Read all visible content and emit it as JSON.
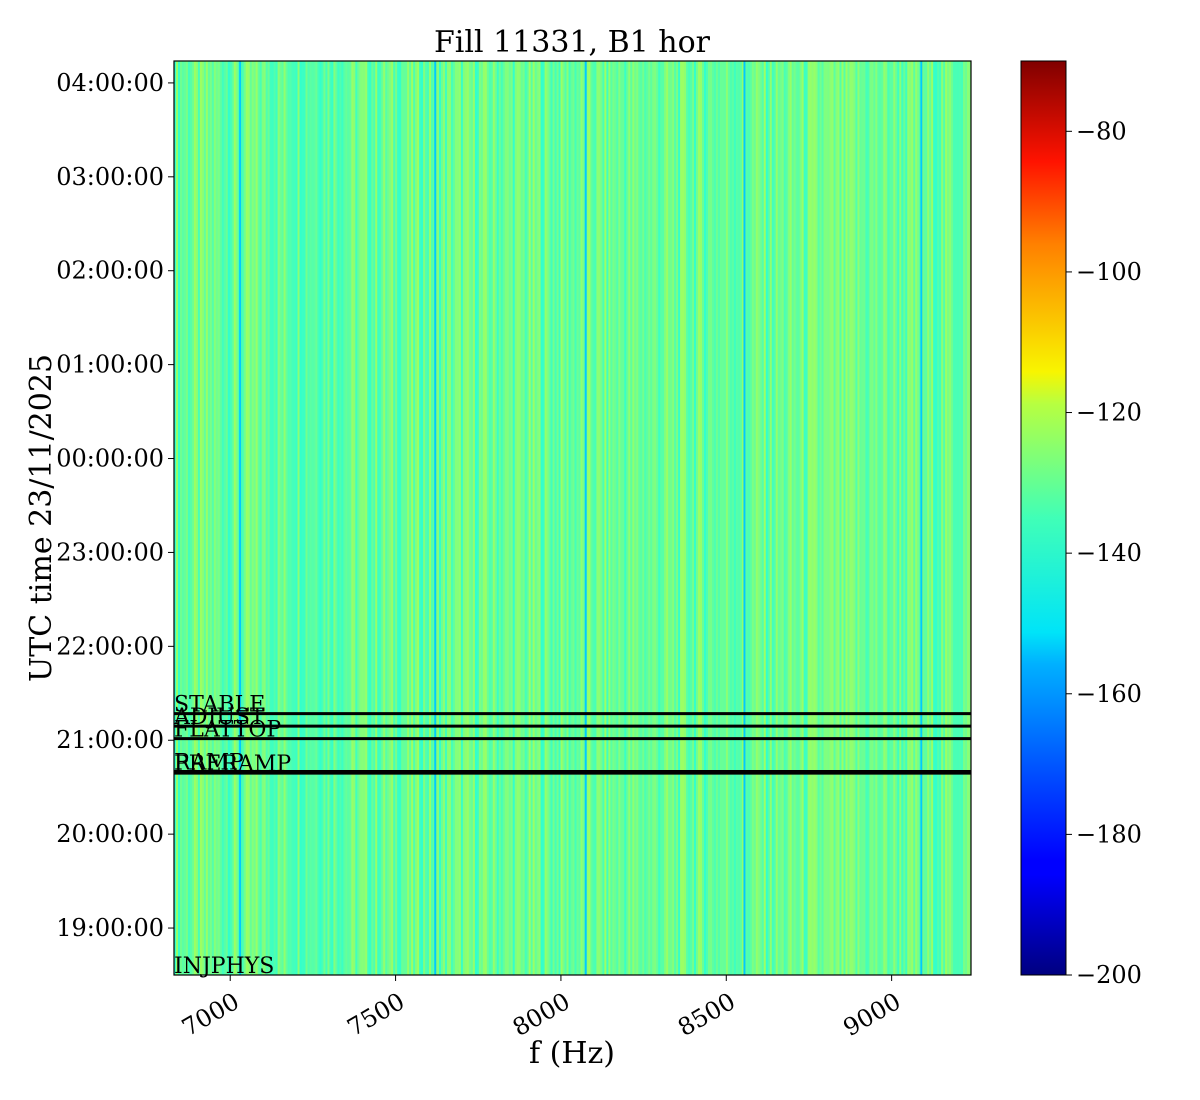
{
  "chart_data": {
    "type": "heatmap",
    "title": "Fill 11331, B1 hor",
    "xlabel": "f (Hz)",
    "ylabel": "UTC time 23/11/2025",
    "xlim": [
      6830,
      9240
    ],
    "ylim": [
      "18:30:00",
      "04:14:00"
    ],
    "x_ticks": [
      "7000",
      "7500",
      "8000",
      "8500",
      "9000"
    ],
    "y_ticks": [
      "19:00:00",
      "20:00:00",
      "21:00:00",
      "22:00:00",
      "23:00:00",
      "00:00:00",
      "01:00:00",
      "02:00:00",
      "03:00:00",
      "04:00:00"
    ],
    "colorbar": {
      "colormap": "jet",
      "range": [
        -200,
        -70
      ],
      "ticks": [
        "−80",
        "−100",
        "−120",
        "−140",
        "−160",
        "−180",
        "−200"
      ]
    },
    "background_level": -138,
    "dark_lines_hz": [
      7030,
      7620,
      8075,
      8555,
      9090
    ],
    "phase_markers": [
      {
        "label": "INJPHYS",
        "time": "18:30:00",
        "line": false
      },
      {
        "label": "PRERAMP",
        "time": "20:39:00",
        "line": true
      },
      {
        "label": "RAMP",
        "time": "20:40:00",
        "line": true
      },
      {
        "label": "FLATTOP",
        "time": "21:01:00",
        "line": true
      },
      {
        "label": "ADJUST",
        "time": "21:09:00",
        "line": true
      },
      {
        "label": "STABLE",
        "time": "21:17:00",
        "line": true
      }
    ]
  }
}
